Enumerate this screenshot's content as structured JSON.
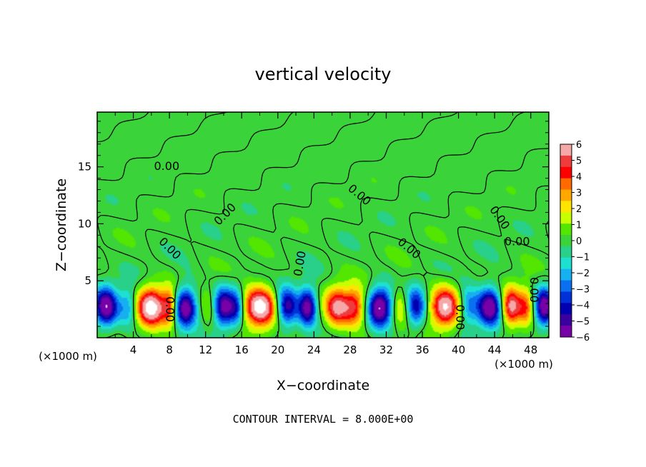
{
  "chart_data": {
    "type": "heatmap",
    "title": "vertical velocity",
    "xlabel": "X−coordinate",
    "ylabel": "Z−coordinate",
    "x_unit": "(×1000 m)",
    "y_unit": "(×1000 m)",
    "xlim": [
      0,
      50
    ],
    "ylim": [
      0,
      19.8
    ],
    "x_ticks": [
      "4",
      "8",
      "12",
      "16",
      "20",
      "24",
      "28",
      "32",
      "36",
      "40",
      "44",
      "48"
    ],
    "y_ticks": [
      "5",
      "10",
      "15"
    ],
    "footer": "CONTOUR INTERVAL = 8.000E+00",
    "colorbar": {
      "ticks": [
        "6",
        "5",
        "4",
        "3",
        "2",
        "1",
        "0",
        "−1",
        "−2",
        "−3",
        "−4",
        "−5",
        "−6"
      ],
      "colors": [
        "#f6a8a8",
        "#ee3c3c",
        "#ff0000",
        "#ff6a00",
        "#ffa800",
        "#ffe400",
        "#c8ff00",
        "#52e600",
        "#3ad43a",
        "#28d08a",
        "#1ee0d0",
        "#16b0f0",
        "#0a70f0",
        "#0030d8",
        "#0000b0",
        "#3a00a0",
        "#7800a8"
      ]
    },
    "contour_labels": [
      {
        "text": "0.00",
        "x": 7.7,
        "z": 15.0,
        "rot": 0
      },
      {
        "text": "0.00",
        "x": 14.2,
        "z": 10.8,
        "rot": -45
      },
      {
        "text": "0.00",
        "x": 8.0,
        "z": 7.8,
        "rot": 45
      },
      {
        "text": "0.00",
        "x": 22.5,
        "z": 6.5,
        "rot": -80
      },
      {
        "text": "0.00",
        "x": 29.0,
        "z": 12.5,
        "rot": 40
      },
      {
        "text": "0.00",
        "x": 34.5,
        "z": 7.8,
        "rot": 40
      },
      {
        "text": "0.00",
        "x": 44.5,
        "z": 10.5,
        "rot": 55
      },
      {
        "text": "0.00",
        "x": 46.5,
        "z": 8.4,
        "rot": 0
      },
      {
        "text": "0.00",
        "x": 8.0,
        "z": 2.5,
        "rot": 90
      },
      {
        "text": "0.00",
        "x": 40.1,
        "z": 1.8,
        "rot": 90
      },
      {
        "text": "0.00",
        "x": 48.3,
        "z": 4.2,
        "rot": 90
      }
    ],
    "cells": [
      {
        "x": 1.0,
        "amp": -6.5,
        "w": 1.3
      },
      {
        "x": 3.5,
        "amp": -3.0,
        "w": 1.0
      },
      {
        "x": 6.0,
        "amp": 7.5,
        "w": 1.7
      },
      {
        "x": 8.0,
        "amp": 3.5,
        "w": 0.7
      },
      {
        "x": 9.8,
        "amp": -6.5,
        "w": 1.2
      },
      {
        "x": 12.5,
        "amp": 2.0,
        "w": 1.0
      },
      {
        "x": 14.0,
        "amp": -6.0,
        "w": 1.3
      },
      {
        "x": 15.5,
        "amp": -3.0,
        "w": 0.8
      },
      {
        "x": 18.0,
        "amp": 7.8,
        "w": 1.8
      },
      {
        "x": 21.0,
        "amp": -5.5,
        "w": 1.2
      },
      {
        "x": 23.3,
        "amp": -6.2,
        "w": 1.0
      },
      {
        "x": 26.5,
        "amp": 5.5,
        "w": 1.3
      },
      {
        "x": 28.5,
        "amp": 5.0,
        "w": 1.3
      },
      {
        "x": 31.3,
        "amp": -6.8,
        "w": 1.4
      },
      {
        "x": 33.5,
        "amp": 2.5,
        "w": 1.0
      },
      {
        "x": 35.3,
        "amp": -4.5,
        "w": 1.1
      },
      {
        "x": 38.5,
        "amp": 6.8,
        "w": 1.6
      },
      {
        "x": 41.0,
        "amp": -3.0,
        "w": 1.0
      },
      {
        "x": 43.5,
        "amp": -6.8,
        "w": 1.5
      },
      {
        "x": 45.8,
        "amp": 6.5,
        "w": 1.2
      },
      {
        "x": 47.5,
        "amp": 3.5,
        "w": 0.8
      },
      {
        "x": 49.5,
        "amp": -6.2,
        "w": 1.0
      }
    ]
  }
}
